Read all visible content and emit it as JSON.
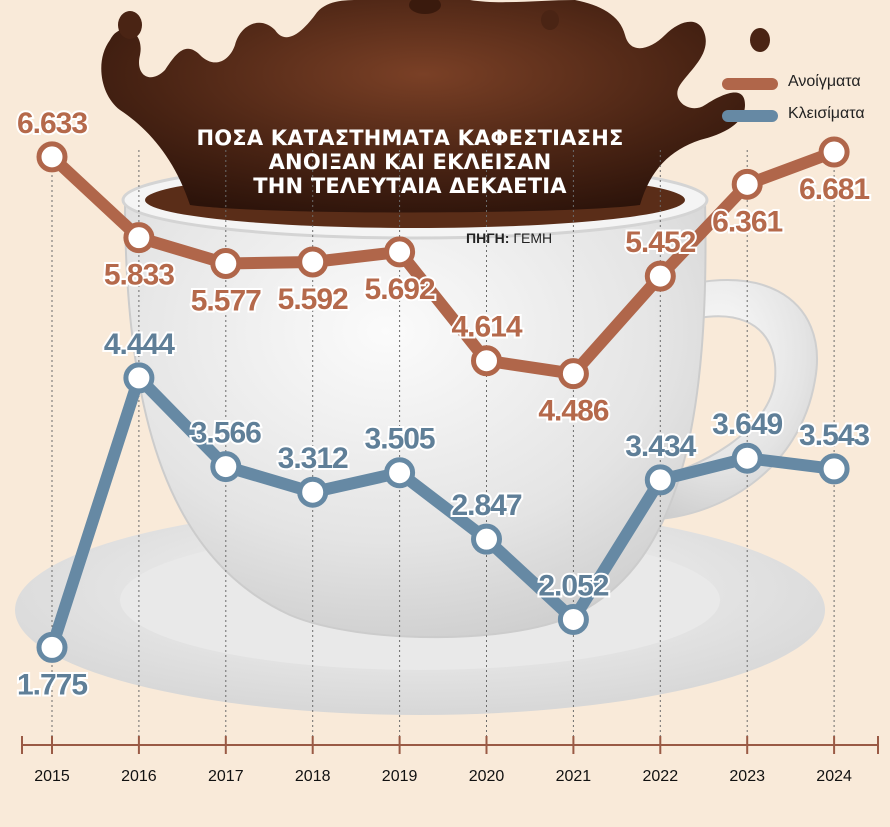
{
  "title_lines": [
    "ΠΟΣΑ ΚΑΤΑΣΤΗΜΑΤΑ ΚΑΦΕΣΤΙΑΣΗΣ",
    "ΑΝΟΙΞΑΝ ΚΑΙ ΕΚΛΕΙΣΑΝ",
    "ΤΗΝ ΤΕΛΕΥΤΑΙΑ ΔΕΚΑΕΤΙΑ"
  ],
  "source": {
    "label": "ΠΗΓΗ:",
    "value": "ΓΕΜΗ"
  },
  "colors": {
    "openings": "#b0664a",
    "closings": "#6689a4",
    "label_openings": "#b5694b",
    "label_closings": "#5f7f98",
    "background": "#f9ead9",
    "coffee": "#4a2414",
    "cup": "#e6e6e6",
    "axis": "#9a5a45"
  },
  "chart_data": {
    "type": "line",
    "title": "ΠΟΣΑ ΚΑΤΑΣΤΗΜΑΤΑ ΚΑΦΕΣΤΙΑΣΗΣ ΑΝΟΙΞΑΝ ΚΑΙ ΕΚΛΕΙΣΑΝ ΤΗΝ ΤΕΛΕΥΤΑΙΑ ΔΕΚΑΕΤΙΑ",
    "x": [
      "2015",
      "2016",
      "2017",
      "2018",
      "2019",
      "2020",
      "2021",
      "2022",
      "2023",
      "2024"
    ],
    "series": [
      {
        "name": "Ανοίγματα",
        "values": [
          6633,
          5833,
          5577,
          5592,
          5692,
          4614,
          4486,
          5452,
          6361,
          6681
        ],
        "labels": [
          "6.633",
          "5.833",
          "5.577",
          "5.592",
          "5.692",
          "4.614",
          "4.486",
          "5.452",
          "6.361",
          "6.681"
        ],
        "label_side": [
          "above",
          "below",
          "below",
          "below",
          "below",
          "above",
          "below",
          "above",
          "below",
          "below"
        ]
      },
      {
        "name": "Κλεισίματα",
        "values": [
          1775,
          4444,
          3566,
          3312,
          3505,
          2847,
          2052,
          3434,
          3649,
          3543
        ],
        "labels": [
          "1.775",
          "4.444",
          "3.566",
          "3.312",
          "3.505",
          "2.847",
          "2.052",
          "3.434",
          "3.649",
          "3.543"
        ],
        "label_side": [
          "below",
          "above",
          "above",
          "above",
          "above",
          "above",
          "above",
          "above",
          "above",
          "above"
        ]
      }
    ],
    "legend_position": "top-right",
    "grid": "vertical-dashed",
    "y_axis_visible": false
  }
}
